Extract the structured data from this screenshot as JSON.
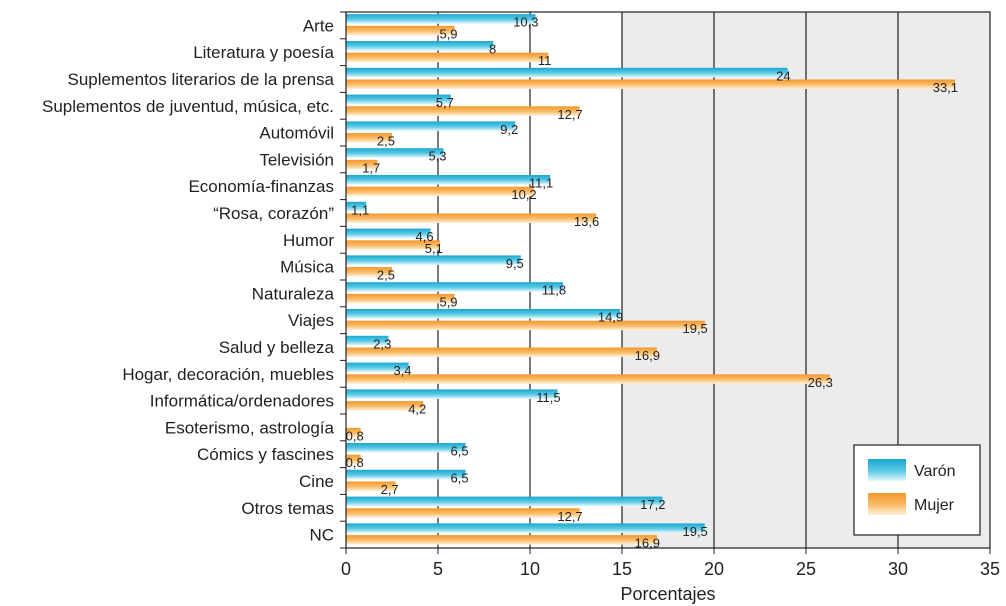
{
  "chart_data": {
    "type": "bar",
    "orientation": "horizontal",
    "categories": [
      "Arte",
      "Literatura y poesía",
      "Suplementos literarios de la prensa",
      "Suplementos de juventud, música, etc.",
      "Automóvil",
      "Televisión",
      "Economía-finanzas",
      "“Rosa, corazón”",
      "Humor",
      "Música",
      "Naturaleza",
      "Viajes",
      "Salud y belleza",
      "Hogar, decoración, muebles",
      "Informática/ordenadores",
      "Esoterismo, astrología",
      "Cómics y fascines",
      "Cine",
      "Otros temas",
      "NC"
    ],
    "series": [
      {
        "name": "Varón",
        "color": "#29b6d8",
        "values": [
          10.3,
          8,
          24,
          5.7,
          9.2,
          5.3,
          11.1,
          1.1,
          4.6,
          9.5,
          11.8,
          14.9,
          2.3,
          3.4,
          11.5,
          null,
          6.5,
          6.5,
          17.2,
          19.5
        ],
        "labels": [
          "10,3",
          "8",
          "24",
          "5,7",
          "9,2",
          "5,3",
          "11,1",
          "1,1",
          "4,6",
          "9,5",
          "11,8",
          "14,9",
          "2,3",
          "3,4",
          "11,5",
          "",
          "6,5",
          "6,5",
          "17,2",
          "19,5"
        ]
      },
      {
        "name": "Mujer",
        "color": "#f7a13c",
        "values": [
          5.9,
          11,
          33.1,
          12.7,
          2.5,
          1.7,
          10.2,
          13.6,
          5.1,
          2.5,
          5.9,
          19.5,
          16.9,
          26.3,
          4.2,
          0.8,
          0.8,
          2.7,
          12.7,
          16.9
        ],
        "labels": [
          "5,9",
          "11",
          "33,1",
          "12,7",
          "2,5",
          "1,7",
          "10,2",
          "13,6",
          "5,1",
          "2,5",
          "5,9",
          "19,5",
          "16,9",
          "26,3",
          "4,2",
          "0,8",
          "0,8",
          "2,7",
          "12,7",
          "16,9"
        ]
      }
    ],
    "xlim": [
      0,
      35
    ],
    "xticks": [
      0,
      5,
      10,
      15,
      20,
      25,
      30,
      35
    ],
    "xlabel": "Porcentajes",
    "ylabel": "",
    "title": "",
    "grid": "vertical",
    "legend_position": "bottom-right"
  }
}
